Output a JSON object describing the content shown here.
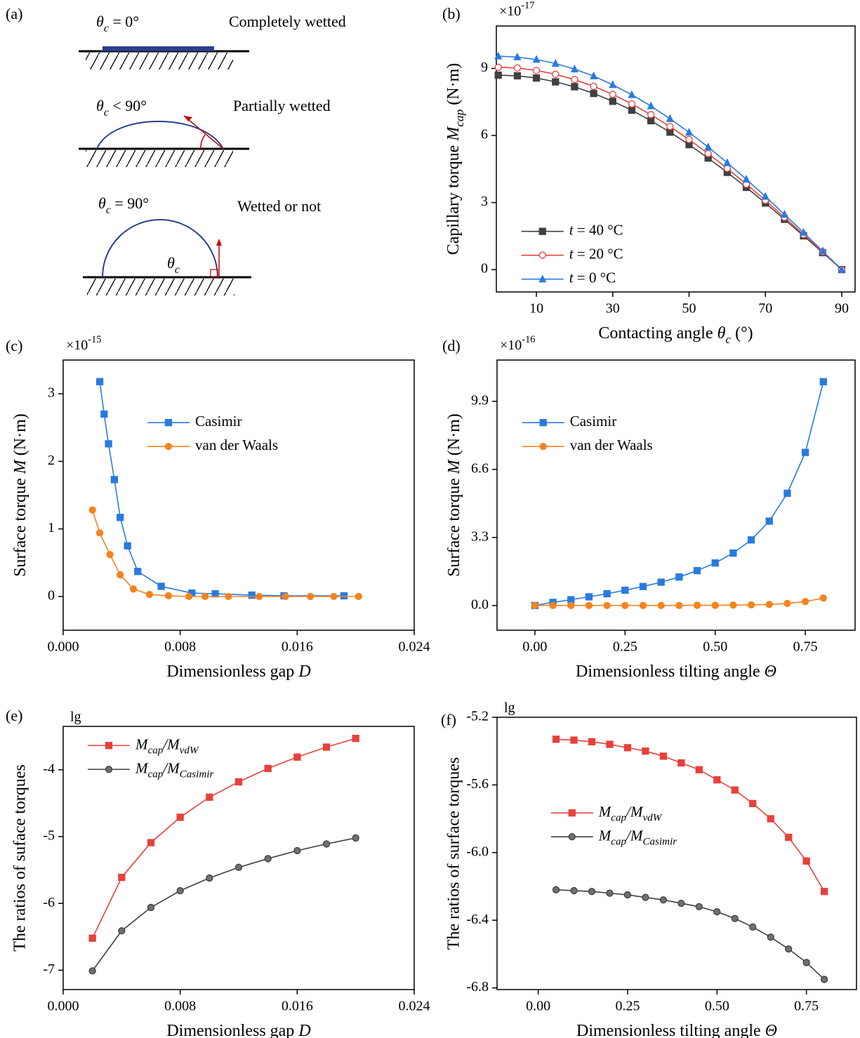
{
  "diagram": {
    "panel_label": "(a)",
    "cases": [
      {
        "angle": [
          {
            "text": "θ",
            "italic": true
          },
          {
            "text": "c",
            "italic": true,
            "sub": true
          },
          {
            "text": " = 0°"
          }
        ],
        "description": "Completely wetted"
      },
      {
        "angle": [
          {
            "text": "θ",
            "italic": true
          },
          {
            "text": "c",
            "italic": true,
            "sub": true
          },
          {
            "text": " < 90°"
          }
        ],
        "description": "Partially wetted"
      },
      {
        "angle": [
          {
            "text": "θ",
            "italic": true
          },
          {
            "text": "c",
            "italic": true,
            "sub": true
          },
          {
            "text": " = 90°"
          }
        ],
        "description": "Wetted or not"
      }
    ],
    "angle_symbol": [
      {
        "text": "θ",
        "italic": true
      },
      {
        "text": "c",
        "italic": true,
        "sub": true
      }
    ]
  },
  "chart_data": [
    {
      "type": "line",
      "panel_label": "(b)",
      "y_multiplier": [
        {
          "text": "×10"
        },
        {
          "text": "-17",
          "sup": true
        }
      ],
      "x_label": [
        {
          "text": "Contacting angle "
        },
        {
          "text": "θ",
          "italic": true
        },
        {
          "text": "c",
          "italic": true,
          "sub": true
        },
        {
          "text": " (°)"
        }
      ],
      "y_label": [
        {
          "text": "Capillary torque "
        },
        {
          "text": "M",
          "italic": true
        },
        {
          "text": "cap",
          "italic": true,
          "sub": true
        },
        {
          "text": " (N·m)"
        }
      ],
      "xlim": [
        -0.5,
        93.5
      ],
      "xticks": [
        10,
        30,
        50,
        70,
        90
      ],
      "ylim": [
        -1,
        10.9
      ],
      "yticks": [
        0,
        3,
        6,
        9
      ],
      "legend": "lower left",
      "x": [
        0,
        5,
        10,
        15,
        20,
        25,
        30,
        35,
        40,
        45,
        50,
        55,
        60,
        65,
        70,
        75,
        80,
        85,
        90
      ],
      "series": [
        {
          "name": [
            {
              "text": "t",
              "italic": true
            },
            {
              "text": " = 40 °C"
            }
          ],
          "color": "#404040",
          "marker": "square",
          "marker_fill": "#404040",
          "values": [
            8.7,
            8.67,
            8.57,
            8.4,
            8.18,
            7.88,
            7.53,
            7.13,
            6.66,
            6.15,
            5.59,
            4.99,
            4.35,
            3.68,
            2.98,
            2.25,
            1.51,
            0.76,
            0
          ]
        },
        {
          "name": [
            {
              "text": "t",
              "italic": true
            },
            {
              "text": " = 20 °C"
            }
          ],
          "color": "#e8413c",
          "marker": "circle",
          "marker_fill": "#ffffff",
          "values": [
            9.05,
            9.02,
            8.91,
            8.74,
            8.5,
            8.2,
            7.84,
            7.41,
            6.93,
            6.4,
            5.82,
            5.19,
            4.53,
            3.82,
            3.1,
            2.34,
            1.57,
            0.79,
            0
          ]
        },
        {
          "name": [
            {
              "text": "t",
              "italic": true
            },
            {
              "text": " = 0 °C"
            }
          ],
          "color": "#2a7bde",
          "marker": "triangle",
          "marker_fill": "#2a7bde",
          "values": [
            9.55,
            9.51,
            9.4,
            9.22,
            8.97,
            8.66,
            8.27,
            7.82,
            7.32,
            6.75,
            6.14,
            5.48,
            4.78,
            4.04,
            3.27,
            2.47,
            1.66,
            0.83,
            0
          ]
        }
      ]
    },
    {
      "type": "line",
      "panel_label": "(c)",
      "y_multiplier": [
        {
          "text": "×10"
        },
        {
          "text": "-15",
          "sup": true
        }
      ],
      "x_label": [
        {
          "text": "Dimensionless gap "
        },
        {
          "text": "D",
          "italic": true
        }
      ],
      "y_label": [
        {
          "text": "Surface torque "
        },
        {
          "text": "M",
          "italic": true
        },
        {
          "text": " (N·m)"
        }
      ],
      "xlim": [
        0,
        0.024
      ],
      "xticks": [
        {
          "value": 0,
          "label": "0.000"
        },
        {
          "value": 0.008,
          "label": "0.008"
        },
        {
          "value": 0.016,
          "label": "0.016"
        },
        {
          "value": 0.024,
          "label": "0.024"
        }
      ],
      "ylim": [
        -0.5,
        3.5
      ],
      "yticks": [
        0,
        1,
        2,
        3
      ],
      "legend": "upper center",
      "series": [
        {
          "name": "Casimir",
          "color": "#2a7bde",
          "marker": "square",
          "marker_fill": "#2a7bde",
          "x": [
            0.0025,
            0.0028,
            0.0031,
            0.0035,
            0.0039,
            0.0044,
            0.0051,
            0.0067,
            0.0088,
            0.0104,
            0.0129,
            0.0151,
            0.0192
          ],
          "values": [
            3.18,
            2.7,
            2.26,
            1.73,
            1.17,
            0.75,
            0.37,
            0.15,
            0.05,
            0.04,
            0.02,
            0.01,
            0.01
          ]
        },
        {
          "name": "van der Waals",
          "color": "#f5831f",
          "marker": "circle",
          "marker_fill": "#f5831f",
          "x": [
            0.002,
            0.0025,
            0.0032,
            0.0039,
            0.0048,
            0.0059,
            0.0072,
            0.0086,
            0.0097,
            0.0113,
            0.0134,
            0.0152,
            0.0169,
            0.0185,
            0.0202
          ],
          "values": [
            1.28,
            0.94,
            0.62,
            0.32,
            0.11,
            0.03,
            0.01,
            0,
            0,
            0,
            0,
            0,
            0,
            0,
            0
          ]
        }
      ]
    },
    {
      "type": "line",
      "panel_label": "(d)",
      "y_multiplier": [
        {
          "text": "×10"
        },
        {
          "text": "-16",
          "sup": true
        }
      ],
      "x_label": [
        {
          "text": "Dimensionless tilting angle "
        },
        {
          "text": "Θ",
          "italic": true
        }
      ],
      "y_label": [
        {
          "text": "Surface torque "
        },
        {
          "text": "M",
          "italic": true
        },
        {
          "text": " (N·m)"
        }
      ],
      "xlim": [
        -0.105,
        0.888
      ],
      "xticks": [
        {
          "value": 0,
          "label": "0.00"
        },
        {
          "value": 0.25,
          "label": "0.25"
        },
        {
          "value": 0.5,
          "label": "0.50"
        },
        {
          "value": 0.75,
          "label": "0.75"
        }
      ],
      "ylim": [
        -1.2,
        11.9
      ],
      "yticks": [
        {
          "value": 0,
          "label": "0.0"
        },
        3.3,
        6.6,
        9.9
      ],
      "legend": "upper left",
      "x": [
        0,
        0.05,
        0.1,
        0.15,
        0.2,
        0.25,
        0.3,
        0.35,
        0.4,
        0.45,
        0.5,
        0.55,
        0.6,
        0.65,
        0.7,
        0.75,
        0.8
      ],
      "series": [
        {
          "name": "Casimir",
          "color": "#2a7bde",
          "marker": "square",
          "marker_fill": "#2a7bde",
          "values": [
            0,
            0.15,
            0.28,
            0.42,
            0.57,
            0.74,
            0.92,
            1.13,
            1.38,
            1.69,
            2.06,
            2.54,
            3.18,
            4.09,
            5.44,
            7.42,
            10.85
          ]
        },
        {
          "name": "van der Waals",
          "color": "#f5831f",
          "marker": "circle",
          "marker_fill": "#f5831f",
          "values": [
            0,
            0,
            0,
            0,
            0,
            0,
            0,
            0,
            0,
            0.01,
            0.01,
            0.02,
            0.03,
            0.05,
            0.1,
            0.19,
            0.36
          ]
        }
      ]
    },
    {
      "type": "line",
      "panel_label": "(e)",
      "y_prefix": "lg",
      "x_label": [
        {
          "text": "Dimensionless gap "
        },
        {
          "text": "D",
          "italic": true
        }
      ],
      "y_label": "The ratios of suface torques",
      "xlim": [
        0,
        0.024
      ],
      "xticks": [
        {
          "value": 0,
          "label": "0.000"
        },
        {
          "value": 0.008,
          "label": "0.008"
        },
        {
          "value": 0.016,
          "label": "0.016"
        },
        {
          "value": 0.024,
          "label": "0.024"
        }
      ],
      "ylim": [
        -7.29,
        -3.35
      ],
      "yticks": [
        -7,
        -6,
        -5,
        -4
      ],
      "legend": "top left",
      "x": [
        0.002,
        0.004,
        0.006,
        0.008,
        0.01,
        0.012,
        0.014,
        0.016,
        0.018,
        0.02
      ],
      "series": [
        {
          "name": [
            {
              "text": "M",
              "italic": true
            },
            {
              "text": "cap",
              "italic": true,
              "sub": true
            },
            {
              "text": "/M",
              "italic": true
            },
            {
              "text": "vdW",
              "italic": true,
              "sub": true
            }
          ],
          "color": "#e8413c",
          "marker": "square",
          "marker_fill": "#e8413c",
          "values": [
            -6.52,
            -5.61,
            -5.09,
            -4.71,
            -4.41,
            -4.18,
            -3.98,
            -3.81,
            -3.66,
            -3.53
          ]
        },
        {
          "name": [
            {
              "text": "M",
              "italic": true
            },
            {
              "text": "cap",
              "italic": true,
              "sub": true
            },
            {
              "text": "/M",
              "italic": true
            },
            {
              "text": "Casimir",
              "italic": true,
              "sub": true
            }
          ],
          "color": "#404040",
          "marker": "circle",
          "marker_fill": "#707070",
          "values": [
            -7.01,
            -6.41,
            -6.06,
            -5.81,
            -5.62,
            -5.46,
            -5.33,
            -5.21,
            -5.11,
            -5.02
          ]
        }
      ]
    },
    {
      "type": "line",
      "panel_label": "(f)",
      "y_prefix": "lg",
      "x_label": [
        {
          "text": "Dimensionless tilting angle "
        },
        {
          "text": "Θ",
          "italic": true
        }
      ],
      "y_label": "The ratios of surface torques",
      "xlim": [
        -0.115,
        0.89
      ],
      "xticks": [
        {
          "value": 0,
          "label": "0.00"
        },
        {
          "value": 0.25,
          "label": "0.25"
        },
        {
          "value": 0.5,
          "label": "0.50"
        },
        {
          "value": 0.75,
          "label": "0.75"
        }
      ],
      "ylim": [
        -6.81,
        -5.2
      ],
      "yticks": [
        -5.2,
        -5.6,
        {
          "value": -6,
          "label": "-6.0"
        },
        -6.4,
        -6.8
      ],
      "legend": "center left",
      "x": [
        0.05,
        0.1,
        0.15,
        0.2,
        0.25,
        0.3,
        0.35,
        0.4,
        0.45,
        0.5,
        0.55,
        0.6,
        0.65,
        0.7,
        0.75,
        0.8
      ],
      "series": [
        {
          "name": [
            {
              "text": "M",
              "italic": true
            },
            {
              "text": "cap",
              "italic": true,
              "sub": true
            },
            {
              "text": "/M",
              "italic": true
            },
            {
              "text": "vdW",
              "italic": true,
              "sub": true
            }
          ],
          "color": "#e8413c",
          "marker": "square",
          "marker_fill": "#e8413c",
          "values": [
            -5.33,
            -5.335,
            -5.345,
            -5.36,
            -5.38,
            -5.4,
            -5.43,
            -5.47,
            -5.51,
            -5.57,
            -5.63,
            -5.71,
            -5.8,
            -5.91,
            -6.05,
            -6.23
          ]
        },
        {
          "name": [
            {
              "text": "M",
              "italic": true
            },
            {
              "text": "cap",
              "italic": true,
              "sub": true
            },
            {
              "text": "/M",
              "italic": true
            },
            {
              "text": "Casimir",
              "italic": true,
              "sub": true
            }
          ],
          "color": "#404040",
          "marker": "circle",
          "marker_fill": "#707070",
          "values": [
            -6.22,
            -6.225,
            -6.23,
            -6.24,
            -6.25,
            -6.265,
            -6.28,
            -6.3,
            -6.32,
            -6.35,
            -6.39,
            -6.44,
            -6.5,
            -6.57,
            -6.65,
            -6.75
          ]
        }
      ]
    }
  ]
}
